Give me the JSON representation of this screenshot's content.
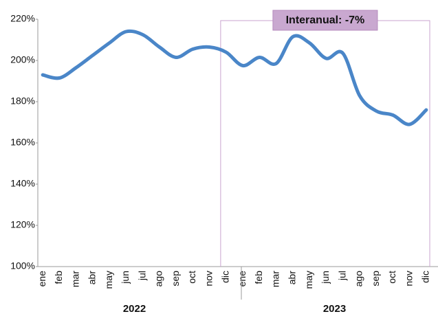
{
  "chart_data": {
    "type": "line",
    "categories": [
      "ene",
      "feb",
      "mar",
      "abr",
      "may",
      "jun",
      "jul",
      "ago",
      "sep",
      "oct",
      "nov",
      "dic",
      "ene",
      "feb",
      "mar",
      "abr",
      "may",
      "jun",
      "jul",
      "ago",
      "sep",
      "oct",
      "nov",
      "dic"
    ],
    "x_groups": [
      "2022",
      "2023"
    ],
    "series": [
      {
        "name": "Interanual",
        "color": "#4a86c8",
        "values": [
          193,
          191.5,
          196.5,
          202.5,
          208.5,
          214,
          212.5,
          206.5,
          201.5,
          205.5,
          206.5,
          204,
          197.5,
          201.5,
          198.5,
          211.5,
          208.5,
          201,
          203.5,
          183,
          175.5,
          173.5,
          169,
          176
        ]
      }
    ],
    "annotation": "Interanual: -7%",
    "ylim": [
      100,
      220
    ],
    "yticks": [
      {
        "value": 100,
        "label": "100%"
      },
      {
        "value": 120,
        "label": "120%"
      },
      {
        "value": 140,
        "label": "140%"
      },
      {
        "value": 160,
        "label": "160%"
      },
      {
        "value": 180,
        "label": "180%"
      },
      {
        "value": 200,
        "label": "200%"
      },
      {
        "value": 220,
        "label": "220%"
      }
    ]
  }
}
